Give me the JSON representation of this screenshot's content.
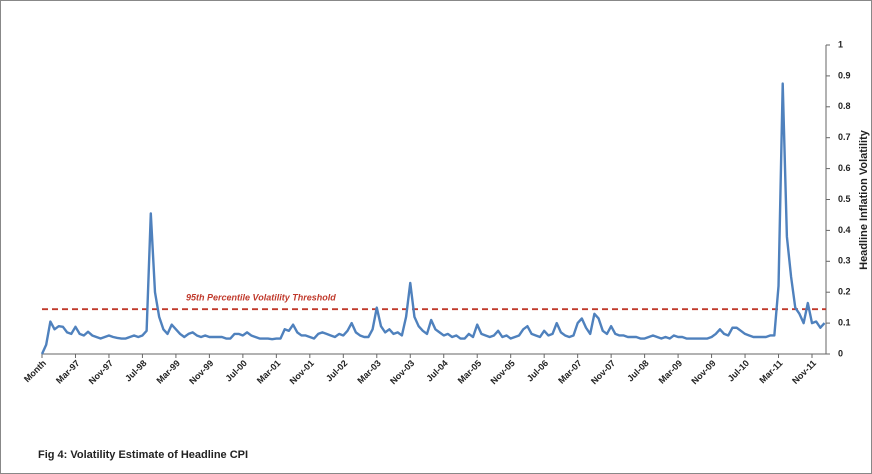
{
  "chart_data": {
    "type": "line",
    "caption": "Fig 4: Volatility Estimate of Headline CPI",
    "y_axis_label": "Headline Inflation Volatility",
    "color": "#4f81bd",
    "categories": [
      "Month",
      null,
      null,
      null,
      null,
      null,
      null,
      null,
      "Mar-97",
      null,
      null,
      null,
      null,
      null,
      null,
      null,
      "Nov-97",
      null,
      null,
      null,
      null,
      null,
      null,
      null,
      "Jul-98",
      null,
      null,
      null,
      null,
      null,
      null,
      null,
      "Mar-99",
      null,
      null,
      null,
      null,
      null,
      null,
      null,
      "Nov-99",
      null,
      null,
      null,
      null,
      null,
      null,
      null,
      "Jul-00",
      null,
      null,
      null,
      null,
      null,
      null,
      null,
      "Mar-01",
      null,
      null,
      null,
      null,
      null,
      null,
      null,
      "Nov-01",
      null,
      null,
      null,
      null,
      null,
      null,
      null,
      "Jul-02",
      null,
      null,
      null,
      null,
      null,
      null,
      null,
      "Mar-03",
      null,
      null,
      null,
      null,
      null,
      null,
      null,
      "Nov-03",
      null,
      null,
      null,
      null,
      null,
      null,
      null,
      "Jul-04",
      null,
      null,
      null,
      null,
      null,
      null,
      null,
      "Mar-05",
      null,
      null,
      null,
      null,
      null,
      null,
      null,
      "Nov-05",
      null,
      null,
      null,
      null,
      null,
      null,
      null,
      "Jul-06",
      null,
      null,
      null,
      null,
      null,
      null,
      null,
      "Mar-07",
      null,
      null,
      null,
      null,
      null,
      null,
      null,
      "Nov-07",
      null,
      null,
      null,
      null,
      null,
      null,
      null,
      "Jul-08",
      null,
      null,
      null,
      null,
      null,
      null,
      null,
      "Mar-09",
      null,
      null,
      null,
      null,
      null,
      null,
      null,
      "Nov-09",
      null,
      null,
      null,
      null,
      null,
      null,
      null,
      "Jul-10",
      null,
      null,
      null,
      null,
      null,
      null,
      null,
      "Mar-11",
      null,
      null,
      null,
      null,
      null,
      null,
      null,
      "Nov-11",
      null,
      null,
      null
    ],
    "values": [
      0,
      0.03,
      0.105,
      0.08,
      0.09,
      0.088,
      0.07,
      0.065,
      0.088,
      0.065,
      0.06,
      0.072,
      0.06,
      0.055,
      0.05,
      0.055,
      0.06,
      0.055,
      0.052,
      0.05,
      0.05,
      0.055,
      0.06,
      0.055,
      0.06,
      0.075,
      0.455,
      0.2,
      0.12,
      0.08,
      0.065,
      0.095,
      0.08,
      0.065,
      0.055,
      0.065,
      0.07,
      0.06,
      0.055,
      0.06,
      0.055,
      0.055,
      0.055,
      0.055,
      0.05,
      0.05,
      0.065,
      0.065,
      0.06,
      0.07,
      0.06,
      0.055,
      0.05,
      0.05,
      0.05,
      0.048,
      0.05,
      0.05,
      0.08,
      0.075,
      0.095,
      0.07,
      0.06,
      0.06,
      0.055,
      0.05,
      0.065,
      0.07,
      0.065,
      0.06,
      0.055,
      0.065,
      0.06,
      0.075,
      0.1,
      0.07,
      0.06,
      0.055,
      0.055,
      0.08,
      0.15,
      0.09,
      0.07,
      0.08,
      0.065,
      0.07,
      0.06,
      0.12,
      0.23,
      0.12,
      0.09,
      0.075,
      0.065,
      0.11,
      0.08,
      0.07,
      0.06,
      0.065,
      0.055,
      0.06,
      0.05,
      0.05,
      0.065,
      0.055,
      0.095,
      0.065,
      0.06,
      0.055,
      0.06,
      0.075,
      0.055,
      0.06,
      0.05,
      0.055,
      0.06,
      0.08,
      0.09,
      0.065,
      0.06,
      0.055,
      0.075,
      0.06,
      0.065,
      0.1,
      0.07,
      0.06,
      0.055,
      0.06,
      0.1,
      0.115,
      0.085,
      0.065,
      0.13,
      0.115,
      0.075,
      0.065,
      0.09,
      0.065,
      0.06,
      0.06,
      0.055,
      0.055,
      0.055,
      0.05,
      0.05,
      0.055,
      0.06,
      0.055,
      0.05,
      0.055,
      0.05,
      0.06,
      0.055,
      0.055,
      0.05,
      0.05,
      0.05,
      0.05,
      0.05,
      0.05,
      0.055,
      0.065,
      0.08,
      0.065,
      0.06,
      0.085,
      0.085,
      0.075,
      0.065,
      0.06,
      0.055,
      0.055,
      0.055,
      0.055,
      0.06,
      0.06,
      0.22,
      0.875,
      0.38,
      0.25,
      0.15,
      0.13,
      0.1,
      0.165,
      0.1,
      0.105,
      0.085,
      0.1
    ],
    "threshold": {
      "value": 0.145,
      "label": "95th Percentile  Volatility  Threshold",
      "color": "#c0392b"
    },
    "ylim": [
      0,
      1
    ],
    "yticks": [
      0,
      0.1,
      0.2,
      0.3,
      0.4,
      0.5,
      0.6,
      0.7,
      0.8,
      0.9,
      1
    ],
    "y_axis_side": "right"
  }
}
